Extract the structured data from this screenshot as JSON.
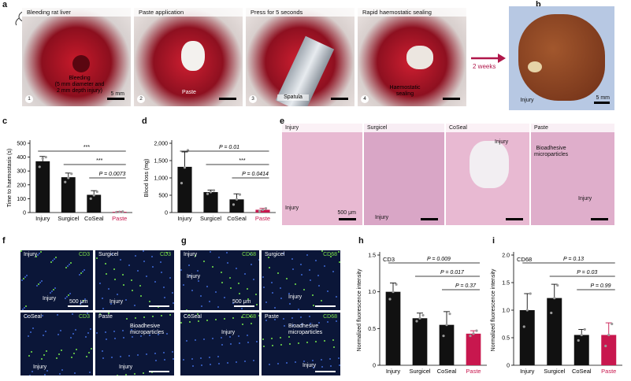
{
  "panel_letters": {
    "a": "a",
    "b": "b",
    "c": "c",
    "d": "d",
    "e": "e",
    "f": "f",
    "g": "g",
    "h": "h",
    "i": "i"
  },
  "panel_a": {
    "steps": [
      {
        "num": "1",
        "caption": "Bleeding rat liver",
        "annotation": "Bleeding\n(5 mm diameter and\n2 mm depth injury)",
        "scale": "5 mm"
      },
      {
        "num": "2",
        "caption": "Paste application",
        "annotation": "Paste"
      },
      {
        "num": "3",
        "caption": "Press for 5 seconds",
        "annotation": "Spatula"
      },
      {
        "num": "4",
        "caption": "Rapid haemostatic sealing",
        "annotation": "Haemostatic\nsealing"
      }
    ],
    "arrow_label": "2 weeks"
  },
  "panel_b": {
    "annotation": "Injury",
    "scale": "5 mm"
  },
  "panel_e": {
    "images": [
      {
        "title": "Injury",
        "annotation": "Injury",
        "scale": "500 μm"
      },
      {
        "title": "Surgicel",
        "annotation": "Injury"
      },
      {
        "title": "CoSeal",
        "annotation": "Injury"
      },
      {
        "title": "Paste",
        "annotation": "Bioadhesive\nmicroparticles",
        "annotation2": "Injury"
      }
    ]
  },
  "panel_f": {
    "marker": "CD3",
    "images": [
      {
        "title": "Injury",
        "annotation": "Injury",
        "scale": "500 μm"
      },
      {
        "title": "Surgicel",
        "annotation": "Injury"
      },
      {
        "title": "CoSeal",
        "annotation": "Injury"
      },
      {
        "title": "Paste",
        "annotation": "Bioadhesive\nmicroparticles",
        "annotation2": "Injury"
      }
    ]
  },
  "panel_g": {
    "marker": "CD68",
    "images": [
      {
        "title": "Injury",
        "annotation": "Injury",
        "scale": "500 μm"
      },
      {
        "title": "Surgicel",
        "annotation": "Injury"
      },
      {
        "title": "CoSeal",
        "annotation": "Injury"
      },
      {
        "title": "Paste",
        "annotation": "Bioadhesive\nmicroparticles",
        "annotation2": "Injury"
      }
    ]
  },
  "colors": {
    "bar_black": "#111111",
    "paste_red": "#c8174e",
    "dot": "#9a9a9a"
  },
  "chart_data": [
    {
      "id": "c",
      "type": "bar",
      "ylabel": "Time to haemostasis (s)",
      "ylim": [
        0,
        500
      ],
      "yticks": [
        0,
        100,
        200,
        300,
        400,
        500
      ],
      "categories": [
        "Injury",
        "Surgicel",
        "CoSeal",
        "Paste"
      ],
      "values": [
        370,
        255,
        128,
        5
      ],
      "errors": [
        35,
        30,
        30,
        3
      ],
      "points": [
        [
          330,
          390,
          400
        ],
        [
          220,
          250,
          280
        ],
        [
          100,
          125,
          150
        ],
        [
          3,
          5,
          7
        ]
      ],
      "significance": [
        {
          "from": 0,
          "to": 3,
          "label": "***"
        },
        {
          "from": 1,
          "to": 3,
          "label": "***"
        },
        {
          "from": 2,
          "to": 3,
          "label": "P = 0.0073"
        }
      ]
    },
    {
      "id": "d",
      "type": "bar",
      "ylabel": "Blood loss (mg)",
      "ylim": [
        0,
        2000
      ],
      "yticks": [
        0,
        500,
        1000,
        1500,
        2000
      ],
      "ytick_labels": [
        "0",
        "500",
        "1,000",
        "1,500",
        "2,000"
      ],
      "categories": [
        "Injury",
        "Surgicel",
        "CoSeal",
        "Paste"
      ],
      "values": [
        1320,
        590,
        380,
        80
      ],
      "errors": [
        430,
        60,
        160,
        40
      ],
      "points": [
        [
          850,
          1300,
          1800
        ],
        [
          540,
          590,
          640
        ],
        [
          230,
          380,
          520
        ],
        [
          40,
          80,
          120
        ]
      ],
      "significance": [
        {
          "from": 0,
          "to": 3,
          "label": "P = 0.01"
        },
        {
          "from": 1,
          "to": 3,
          "label": "***"
        },
        {
          "from": 2,
          "to": 3,
          "label": "P = 0.0414"
        }
      ]
    },
    {
      "id": "h",
      "type": "bar",
      "title": "CD3",
      "ylabel": "Normalized fluorescence intensity",
      "ylim": [
        0,
        1.5
      ],
      "yticks": [
        0,
        0.5,
        1.0,
        1.5
      ],
      "ytick_labels": [
        "0",
        "0.5",
        "1.0",
        "1.5"
      ],
      "categories": [
        "Injury",
        "Surgicel",
        "CoSeal",
        "Paste"
      ],
      "values": [
        1.0,
        0.64,
        0.55,
        0.43
      ],
      "errors": [
        0.12,
        0.07,
        0.18,
        0.04
      ],
      "points": [
        [
          0.9,
          1.0,
          1.1
        ],
        [
          0.6,
          0.64,
          0.68
        ],
        [
          0.4,
          0.55,
          0.7
        ],
        [
          0.4,
          0.43,
          0.47
        ]
      ],
      "significance": [
        {
          "from": 0,
          "to": 3,
          "label": "P = 0.009"
        },
        {
          "from": 1,
          "to": 3,
          "label": "P = 0.017"
        },
        {
          "from": 2,
          "to": 3,
          "label": "P = 0.37"
        }
      ]
    },
    {
      "id": "i",
      "type": "bar",
      "title": "CD68",
      "ylabel": "Normalized fluorescence intensity",
      "ylim": [
        0,
        2.0
      ],
      "yticks": [
        0,
        0.5,
        1.0,
        1.5,
        2.0
      ],
      "ytick_labels": [
        "0",
        "0.5",
        "1.0",
        "1.5",
        "2.0"
      ],
      "categories": [
        "Injury",
        "Surgicel",
        "CoSeal",
        "Paste"
      ],
      "values": [
        1.0,
        1.22,
        0.55,
        0.55
      ],
      "errors": [
        0.3,
        0.25,
        0.1,
        0.22
      ],
      "points": [
        [
          0.7,
          1.0,
          1.3
        ],
        [
          0.95,
          1.22,
          1.45
        ],
        [
          0.45,
          0.55,
          0.65
        ],
        [
          0.35,
          0.55,
          0.75
        ]
      ],
      "significance": [
        {
          "from": 0,
          "to": 3,
          "label": "P = 0.13"
        },
        {
          "from": 1,
          "to": 3,
          "label": "P = 0.03"
        },
        {
          "from": 2,
          "to": 3,
          "label": "P = 0.99"
        }
      ]
    }
  ]
}
